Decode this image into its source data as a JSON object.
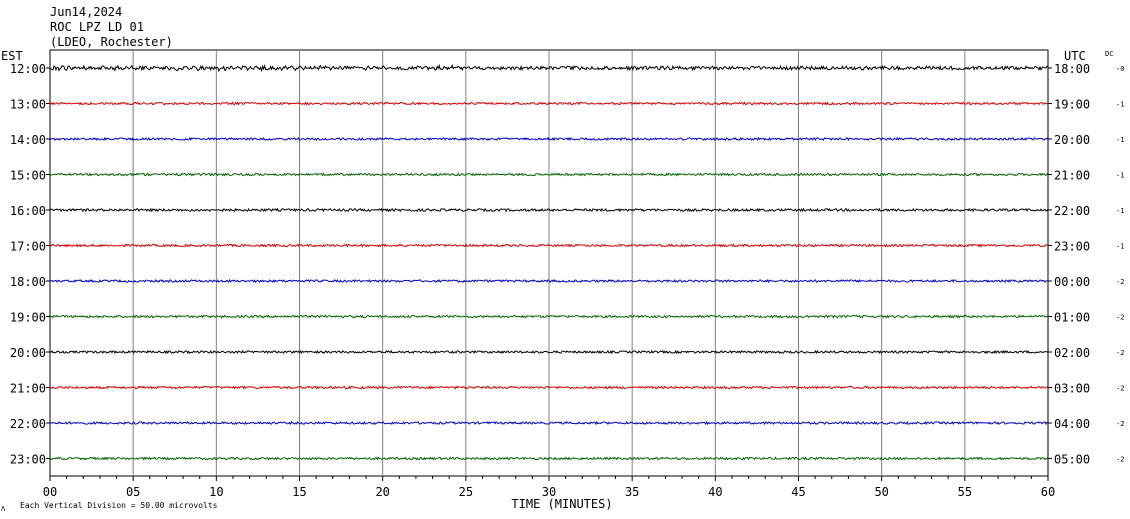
{
  "header": {
    "date": "Jun14,2024",
    "station": "ROC LPZ LD 01",
    "location": "(LDEO, Rochester)"
  },
  "left_zone_label": "EST",
  "right_zone_label": "UTC",
  "dc_label": "DC",
  "scale_note": "Each Vertical Division =   50.00 microvolts",
  "scale_mark": "Λ",
  "chart_data": {
    "type": "line",
    "xlabel": "TIME (MINUTES)",
    "xlim": [
      0,
      60
    ],
    "x_ticks": [
      "00",
      "05",
      "10",
      "15",
      "20",
      "25",
      "30",
      "35",
      "40",
      "45",
      "50",
      "55",
      "60"
    ],
    "grid": "vertical lines every 5 minutes",
    "series": [
      {
        "left": "12:00",
        "right": "18:00",
        "dc": "-0",
        "color": "#000000",
        "amp": 1.6
      },
      {
        "left": "13:00",
        "right": "19:00",
        "dc": "-1",
        "color": "#d40000",
        "amp": 1.0
      },
      {
        "left": "14:00",
        "right": "20:00",
        "dc": "-1",
        "color": "#0000c8",
        "amp": 1.0
      },
      {
        "left": "15:00",
        "right": "21:00",
        "dc": "-1",
        "color": "#006400",
        "amp": 1.0
      },
      {
        "left": "16:00",
        "right": "22:00",
        "dc": "-1",
        "color": "#000000",
        "amp": 1.1
      },
      {
        "left": "17:00",
        "right": "23:00",
        "dc": "-1",
        "color": "#d40000",
        "amp": 1.0
      },
      {
        "left": "18:00",
        "right": "00:00",
        "dc": "-2",
        "color": "#0000c8",
        "amp": 1.0
      },
      {
        "left": "19:00",
        "right": "01:00",
        "dc": "-2",
        "color": "#006400",
        "amp": 1.0
      },
      {
        "left": "20:00",
        "right": "02:00",
        "dc": "-2",
        "color": "#000000",
        "amp": 1.0
      },
      {
        "left": "21:00",
        "right": "03:00",
        "dc": "-2",
        "color": "#d40000",
        "amp": 1.0
      },
      {
        "left": "22:00",
        "right": "04:00",
        "dc": "-2",
        "color": "#0000c8",
        "amp": 1.0
      },
      {
        "left": "23:00",
        "right": "05:00",
        "dc": "-2",
        "color": "#006400",
        "amp": 1.0
      }
    ]
  }
}
